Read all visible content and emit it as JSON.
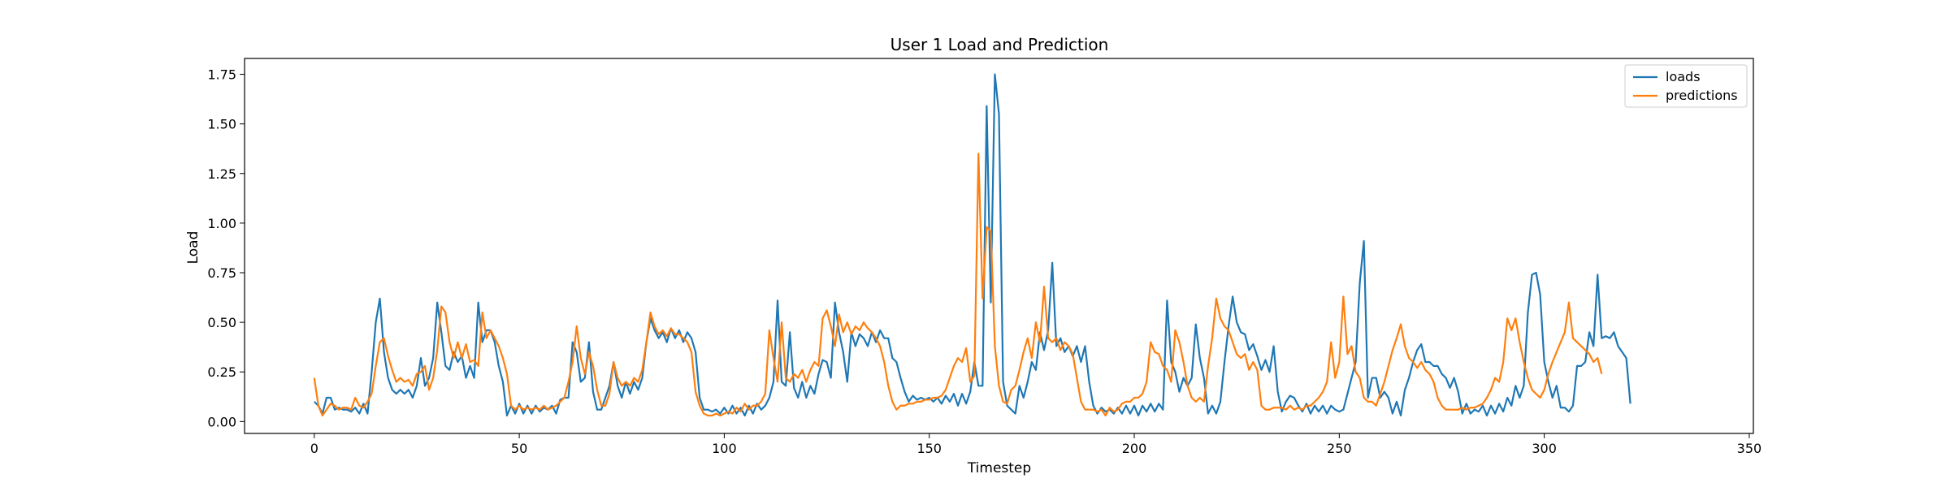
{
  "chart_data": {
    "type": "line",
    "title": "User 1 Load and Prediction",
    "xlabel": "Timestep",
    "ylabel": "Load",
    "xlim": [
      -17,
      351
    ],
    "ylim": [
      -0.06,
      1.83
    ],
    "xticks": [
      0,
      50,
      100,
      150,
      200,
      250,
      300,
      350
    ],
    "yticks": [
      0.0,
      0.25,
      0.5,
      0.75,
      1.0,
      1.25,
      1.5,
      1.75
    ],
    "xtick_labels": [
      "0",
      "50",
      "100",
      "150",
      "200",
      "250",
      "300",
      "350"
    ],
    "ytick_labels": [
      "0.00",
      "0.25",
      "0.50",
      "0.75",
      "1.00",
      "1.25",
      "1.50",
      "1.75"
    ],
    "grid": false,
    "legend_position": "top-right",
    "series": [
      {
        "name": "loads",
        "color": "#1f77b4",
        "values": [
          0.1,
          0.08,
          0.04,
          0.12,
          0.12,
          0.06,
          0.07,
          0.06,
          0.06,
          0.05,
          0.07,
          0.04,
          0.09,
          0.04,
          0.25,
          0.5,
          0.62,
          0.35,
          0.22,
          0.16,
          0.14,
          0.16,
          0.14,
          0.16,
          0.12,
          0.18,
          0.32,
          0.18,
          0.22,
          0.32,
          0.6,
          0.45,
          0.28,
          0.26,
          0.35,
          0.3,
          0.33,
          0.22,
          0.28,
          0.22,
          0.6,
          0.4,
          0.46,
          0.46,
          0.4,
          0.28,
          0.2,
          0.03,
          0.08,
          0.04,
          0.09,
          0.04,
          0.08,
          0.04,
          0.08,
          0.05,
          0.07,
          0.06,
          0.08,
          0.04,
          0.11,
          0.12,
          0.12,
          0.4,
          0.35,
          0.2,
          0.22,
          0.4,
          0.15,
          0.06,
          0.06,
          0.12,
          0.18,
          0.3,
          0.18,
          0.12,
          0.2,
          0.14,
          0.2,
          0.16,
          0.22,
          0.4,
          0.52,
          0.46,
          0.42,
          0.45,
          0.4,
          0.47,
          0.42,
          0.46,
          0.4,
          0.45,
          0.42,
          0.35,
          0.12,
          0.06,
          0.06,
          0.05,
          0.06,
          0.04,
          0.07,
          0.04,
          0.08,
          0.04,
          0.07,
          0.03,
          0.08,
          0.04,
          0.09,
          0.06,
          0.08,
          0.12,
          0.2,
          0.61,
          0.2,
          0.18,
          0.45,
          0.17,
          0.12,
          0.2,
          0.12,
          0.18,
          0.14,
          0.24,
          0.31,
          0.3,
          0.22,
          0.6,
          0.45,
          0.35,
          0.2,
          0.45,
          0.38,
          0.44,
          0.42,
          0.38,
          0.45,
          0.4,
          0.46,
          0.42,
          0.42,
          0.32,
          0.3,
          0.22,
          0.15,
          0.1,
          0.13,
          0.11,
          0.12,
          0.11,
          0.12,
          0.1,
          0.12,
          0.09,
          0.13,
          0.1,
          0.14,
          0.08,
          0.14,
          0.09,
          0.15,
          0.3,
          0.18,
          0.18,
          1.59,
          0.6,
          1.75,
          1.55,
          0.2,
          0.08,
          0.06,
          0.04,
          0.18,
          0.12,
          0.2,
          0.3,
          0.26,
          0.45,
          0.36,
          0.46,
          0.8,
          0.38,
          0.42,
          0.35,
          0.38,
          0.33,
          0.38,
          0.3,
          0.38,
          0.2,
          0.08,
          0.04,
          0.07,
          0.05,
          0.06,
          0.04,
          0.07,
          0.04,
          0.08,
          0.04,
          0.08,
          0.03,
          0.08,
          0.05,
          0.09,
          0.05,
          0.09,
          0.06,
          0.61,
          0.3,
          0.25,
          0.15,
          0.22,
          0.18,
          0.22,
          0.49,
          0.32,
          0.22,
          0.04,
          0.08,
          0.04,
          0.1,
          0.3,
          0.48,
          0.63,
          0.5,
          0.45,
          0.44,
          0.36,
          0.39,
          0.33,
          0.26,
          0.31,
          0.25,
          0.38,
          0.15,
          0.05,
          0.1,
          0.13,
          0.12,
          0.08,
          0.05,
          0.09,
          0.04,
          0.08,
          0.05,
          0.08,
          0.04,
          0.08,
          0.06,
          0.05,
          0.06,
          0.14,
          0.22,
          0.3,
          0.7,
          0.91,
          0.12,
          0.22,
          0.22,
          0.12,
          0.15,
          0.12,
          0.04,
          0.1,
          0.03,
          0.16,
          0.22,
          0.3,
          0.36,
          0.39,
          0.3,
          0.3,
          0.28,
          0.28,
          0.24,
          0.22,
          0.17,
          0.22,
          0.15,
          0.04,
          0.09,
          0.04,
          0.06,
          0.05,
          0.08,
          0.03,
          0.08,
          0.04,
          0.09,
          0.05,
          0.12,
          0.08,
          0.18,
          0.12,
          0.18,
          0.55,
          0.74,
          0.75,
          0.64,
          0.3,
          0.2,
          0.12,
          0.18,
          0.07,
          0.07,
          0.05,
          0.08,
          0.28,
          0.28,
          0.3,
          0.45,
          0.38,
          0.74,
          0.42,
          0.43,
          0.42,
          0.45,
          0.38,
          0.35,
          0.32,
          0.09
        ]
      },
      {
        "name": "predictions",
        "color": "#ff7f0e",
        "values": [
          0.22,
          0.08,
          0.03,
          0.06,
          0.09,
          0.08,
          0.06,
          0.07,
          0.07,
          0.06,
          0.12,
          0.08,
          0.07,
          0.1,
          0.14,
          0.28,
          0.4,
          0.42,
          0.33,
          0.26,
          0.2,
          0.22,
          0.2,
          0.21,
          0.18,
          0.24,
          0.25,
          0.28,
          0.16,
          0.22,
          0.36,
          0.58,
          0.55,
          0.4,
          0.32,
          0.4,
          0.32,
          0.39,
          0.3,
          0.31,
          0.28,
          0.55,
          0.42,
          0.46,
          0.42,
          0.38,
          0.32,
          0.24,
          0.08,
          0.06,
          0.08,
          0.06,
          0.07,
          0.06,
          0.07,
          0.06,
          0.08,
          0.06,
          0.07,
          0.08,
          0.1,
          0.12,
          0.2,
          0.3,
          0.48,
          0.32,
          0.24,
          0.35,
          0.28,
          0.16,
          0.08,
          0.08,
          0.14,
          0.3,
          0.22,
          0.18,
          0.2,
          0.18,
          0.22,
          0.2,
          0.26,
          0.4,
          0.55,
          0.48,
          0.44,
          0.46,
          0.43,
          0.47,
          0.44,
          0.44,
          0.42,
          0.4,
          0.35,
          0.15,
          0.08,
          0.04,
          0.03,
          0.03,
          0.04,
          0.03,
          0.04,
          0.05,
          0.04,
          0.07,
          0.05,
          0.09,
          0.06,
          0.08,
          0.08,
          0.1,
          0.14,
          0.46,
          0.32,
          0.2,
          0.5,
          0.22,
          0.2,
          0.24,
          0.22,
          0.26,
          0.2,
          0.26,
          0.3,
          0.28,
          0.52,
          0.56,
          0.48,
          0.38,
          0.54,
          0.45,
          0.5,
          0.44,
          0.48,
          0.46,
          0.5,
          0.47,
          0.45,
          0.42,
          0.38,
          0.3,
          0.18,
          0.1,
          0.06,
          0.08,
          0.08,
          0.09,
          0.09,
          0.1,
          0.1,
          0.11,
          0.11,
          0.12,
          0.12,
          0.13,
          0.16,
          0.22,
          0.28,
          0.32,
          0.3,
          0.37,
          0.2,
          0.23,
          1.35,
          0.62,
          0.98,
          0.96,
          0.38,
          0.18,
          0.1,
          0.09,
          0.16,
          0.18,
          0.26,
          0.35,
          0.42,
          0.32,
          0.5,
          0.4,
          0.68,
          0.42,
          0.4,
          0.42,
          0.36,
          0.4,
          0.38,
          0.34,
          0.22,
          0.1,
          0.06,
          0.06,
          0.06,
          0.05,
          0.06,
          0.03,
          0.07,
          0.05,
          0.06,
          0.09,
          0.1,
          0.1,
          0.12,
          0.12,
          0.14,
          0.2,
          0.4,
          0.35,
          0.34,
          0.28,
          0.26,
          0.2,
          0.46,
          0.4,
          0.3,
          0.18,
          0.12,
          0.1,
          0.12,
          0.1,
          0.28,
          0.42,
          0.62,
          0.52,
          0.48,
          0.46,
          0.4,
          0.34,
          0.32,
          0.34,
          0.26,
          0.3,
          0.26,
          0.08,
          0.06,
          0.06,
          0.07,
          0.07,
          0.07,
          0.06,
          0.08,
          0.06,
          0.07,
          0.06,
          0.08,
          0.08,
          0.1,
          0.12,
          0.15,
          0.2,
          0.4,
          0.22,
          0.3,
          0.63,
          0.34,
          0.38,
          0.25,
          0.22,
          0.12,
          0.1,
          0.1,
          0.08,
          0.14,
          0.2,
          0.28,
          0.36,
          0.42,
          0.49,
          0.38,
          0.32,
          0.3,
          0.27,
          0.3,
          0.26,
          0.24,
          0.2,
          0.12,
          0.08,
          0.06,
          0.06,
          0.06,
          0.06,
          0.07,
          0.06,
          0.07,
          0.07,
          0.08,
          0.09,
          0.12,
          0.16,
          0.22,
          0.2,
          0.3,
          0.52,
          0.46,
          0.52,
          0.4,
          0.3,
          0.22,
          0.16,
          0.14,
          0.12,
          0.16,
          0.24,
          0.3,
          0.35,
          0.4,
          0.45,
          0.6,
          0.42,
          0.4,
          0.38,
          0.36,
          0.34,
          0.3,
          0.32,
          0.24
        ]
      }
    ]
  }
}
